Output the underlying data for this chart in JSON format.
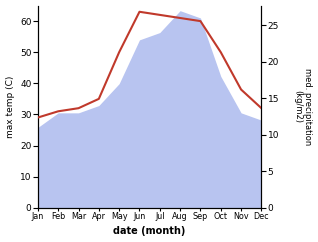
{
  "months": [
    "Jan",
    "Feb",
    "Mar",
    "Apr",
    "May",
    "Jun",
    "Jul",
    "Aug",
    "Sep",
    "Oct",
    "Nov",
    "Dec"
  ],
  "temp": [
    29,
    31,
    32,
    35,
    50,
    63,
    62,
    61,
    60,
    50,
    38,
    32
  ],
  "precip": [
    11,
    13,
    13,
    14,
    17,
    23,
    24,
    27,
    26,
    18,
    13,
    12
  ],
  "temp_color": "#c0392b",
  "precip_fill_color": "#b8c4f0",
  "left_ylabel": "max temp (C)",
  "right_ylabel": "med. precipitation\n(kg/m2)",
  "xlabel": "date (month)",
  "ylim_left": [
    0,
    65
  ],
  "ylim_right": [
    0,
    27.7
  ],
  "left_yticks": [
    0,
    10,
    20,
    30,
    40,
    50,
    60
  ],
  "right_yticks": [
    0,
    5,
    10,
    15,
    20,
    25
  ],
  "bg_color": "#ffffff"
}
